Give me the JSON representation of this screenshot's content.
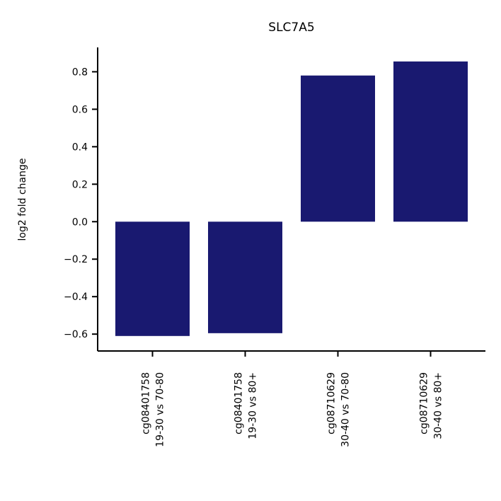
{
  "chart_data": {
    "type": "bar",
    "title": "SLC7A5",
    "xlabel": "",
    "ylabel": "log2 fold change",
    "categories": [
      [
        "cg08401758",
        "19-30 vs 70-80"
      ],
      [
        "cg08401758",
        "19-30 vs 80+"
      ],
      [
        "cg08710629",
        "30-40 vs 70-80"
      ],
      [
        "cg08710629",
        "30-40 vs 80+"
      ]
    ],
    "values": [
      -0.61,
      -0.595,
      0.78,
      0.855
    ],
    "ylim": [
      -0.69,
      0.93
    ],
    "yticks": [
      "0.8",
      "0.6",
      "0.4",
      "0.2",
      "0.0",
      "−0.2",
      "−0.4",
      "−0.6"
    ],
    "ytick_values": [
      0.8,
      0.6,
      0.4,
      0.2,
      0.0,
      -0.2,
      -0.4,
      -0.6
    ],
    "bar_color": "#191970",
    "grid": false,
    "legend": "none"
  }
}
